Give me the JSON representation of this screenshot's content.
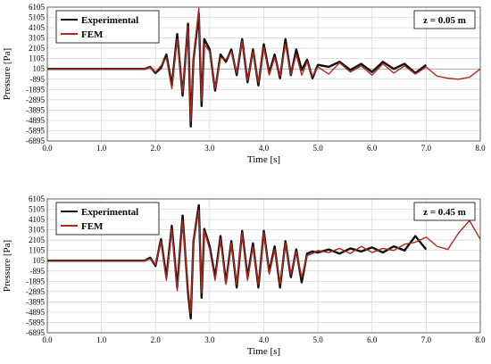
{
  "chart_data": [
    {
      "type": "line",
      "panel_label": "z = 0.05 m",
      "xlabel": "Time [s]",
      "ylabel": "Pressure [Pa]",
      "xlim": [
        0,
        8
      ],
      "ylim": [
        -6895,
        6105
      ],
      "x_ticks": [
        "0.0",
        "1.0",
        "2.0",
        "3.0",
        "4.0",
        "5.0",
        "6.0",
        "7.0",
        "8.0"
      ],
      "y_ticks": [
        "6105",
        "5105",
        "4105",
        "3105",
        "2105",
        "1105",
        "105",
        "-895",
        "-1895",
        "-2895",
        "-3895",
        "-4895",
        "-5895",
        "-6895"
      ],
      "reference_line": 105,
      "grid": true,
      "legend_position": "top-left",
      "series": [
        {
          "name": "Experimental",
          "color": "#111111",
          "x": [
            0,
            1.8,
            1.9,
            2.0,
            2.1,
            2.2,
            2.3,
            2.4,
            2.5,
            2.6,
            2.65,
            2.7,
            2.8,
            2.85,
            2.9,
            3.0,
            3.1,
            3.2,
            3.3,
            3.4,
            3.5,
            3.6,
            3.7,
            3.8,
            3.9,
            4.0,
            4.1,
            4.2,
            4.3,
            4.4,
            4.5,
            4.6,
            4.7,
            4.8,
            4.9,
            5.0,
            5.2,
            5.4,
            5.6,
            5.8,
            6.0,
            6.2,
            6.4,
            6.6,
            6.8,
            7.0
          ],
          "y": [
            105,
            105,
            300,
            -300,
            200,
            1500,
            -1500,
            3500,
            -2500,
            4500,
            -5500,
            1000,
            5500,
            -3500,
            3000,
            2000,
            -2000,
            1500,
            800,
            2000,
            -500,
            3000,
            -1200,
            2000,
            -1500,
            2500,
            -300,
            1500,
            -800,
            3000,
            -500,
            2000,
            0,
            1000,
            -800,
            500,
            300,
            800,
            0,
            600,
            -200,
            800,
            100,
            600,
            -300,
            500
          ]
        },
        {
          "name": "FEM",
          "color": "#b2271c",
          "x": [
            0,
            1.8,
            1.9,
            2.0,
            2.1,
            2.2,
            2.3,
            2.4,
            2.5,
            2.6,
            2.65,
            2.7,
            2.8,
            2.85,
            2.9,
            3.0,
            3.1,
            3.2,
            3.3,
            3.4,
            3.5,
            3.6,
            3.7,
            3.8,
            3.9,
            4.0,
            4.1,
            4.2,
            4.3,
            4.4,
            4.5,
            4.6,
            4.7,
            4.8,
            4.9,
            5.0,
            5.2,
            5.4,
            5.6,
            5.8,
            6.0,
            6.2,
            6.4,
            6.6,
            6.8,
            7.0,
            7.2,
            7.4,
            7.6,
            7.8,
            8.0
          ],
          "y": [
            105,
            105,
            250,
            -200,
            400,
            1200,
            -1800,
            3000,
            -2200,
            4200,
            -5000,
            1200,
            6000,
            -3000,
            2500,
            1800,
            -1800,
            1200,
            1000,
            1800,
            -300,
            2800,
            -1000,
            1800,
            -1200,
            2200,
            -500,
            1200,
            -600,
            2500,
            -400,
            1500,
            -500,
            800,
            -600,
            300,
            -400,
            700,
            -200,
            400,
            -500,
            600,
            -300,
            400,
            -400,
            300,
            -600,
            -800,
            -900,
            -700,
            100
          ]
        }
      ]
    },
    {
      "type": "line",
      "panel_label": "z = 0.45 m",
      "xlabel": "Time [s]",
      "ylabel": "Pressure [Pa]",
      "xlim": [
        0,
        8
      ],
      "ylim": [
        -6895,
        6105
      ],
      "x_ticks": [
        "0.0",
        "1.0",
        "2.0",
        "3.0",
        "4.0",
        "5.0",
        "6.0",
        "7.0",
        "8.0"
      ],
      "y_ticks": [
        "6105",
        "5105",
        "4105",
        "3105",
        "2105",
        "1105",
        "105",
        "-895",
        "-1895",
        "-2895",
        "-3895",
        "-4895",
        "-5895",
        "-6895"
      ],
      "reference_line": 105,
      "grid": true,
      "legend_position": "top-left",
      "series": [
        {
          "name": "Experimental",
          "color": "#111111",
          "x": [
            0,
            1.8,
            1.9,
            2.0,
            2.1,
            2.2,
            2.3,
            2.4,
            2.5,
            2.6,
            2.65,
            2.7,
            2.8,
            2.85,
            2.9,
            3.0,
            3.1,
            3.2,
            3.3,
            3.4,
            3.5,
            3.6,
            3.7,
            3.8,
            3.9,
            4.0,
            4.1,
            4.2,
            4.3,
            4.4,
            4.5,
            4.6,
            4.7,
            4.8,
            4.9,
            5.0,
            5.2,
            5.4,
            5.6,
            5.8,
            6.0,
            6.2,
            6.4,
            6.6,
            6.8,
            7.0
          ],
          "y": [
            105,
            105,
            400,
            -400,
            2200,
            -1500,
            3500,
            -2500,
            4500,
            -3000,
            -5500,
            2000,
            5500,
            -3500,
            3200,
            1500,
            -1500,
            2500,
            -2000,
            2000,
            -2500,
            3000,
            -1500,
            1800,
            -2500,
            3000,
            -1000,
            1500,
            -2500,
            2000,
            -1500,
            1200,
            -2000,
            800,
            1000,
            900,
            1200,
            800,
            1300,
            1000,
            1400,
            900,
            1500,
            1100,
            2500,
            1200
          ]
        },
        {
          "name": "FEM",
          "color": "#b2271c",
          "x": [
            0,
            1.8,
            1.9,
            2.0,
            2.1,
            2.2,
            2.3,
            2.4,
            2.5,
            2.6,
            2.65,
            2.7,
            2.8,
            2.85,
            2.9,
            3.0,
            3.1,
            3.2,
            3.3,
            3.4,
            3.5,
            3.6,
            3.7,
            3.8,
            3.9,
            4.0,
            4.1,
            4.2,
            4.3,
            4.4,
            4.5,
            4.6,
            4.7,
            4.8,
            4.9,
            5.0,
            5.2,
            5.4,
            5.6,
            5.8,
            6.0,
            6.2,
            6.4,
            6.6,
            6.8,
            7.0,
            7.2,
            7.4,
            7.6,
            7.8,
            8.0
          ],
          "y": [
            105,
            105,
            300,
            -300,
            2000,
            -1800,
            3200,
            -2800,
            4000,
            -2500,
            -5000,
            2200,
            5000,
            -3000,
            3000,
            1200,
            -1800,
            2200,
            -2200,
            1800,
            -2200,
            2800,
            -1800,
            1500,
            -2200,
            2800,
            -1200,
            1200,
            -2200,
            1800,
            -1200,
            1000,
            -1500,
            600,
            800,
            1100,
            900,
            1300,
            800,
            1500,
            900,
            1300,
            1100,
            1700,
            1900,
            2400,
            1500,
            1200,
            2800,
            4000,
            2200
          ]
        }
      ]
    }
  ]
}
